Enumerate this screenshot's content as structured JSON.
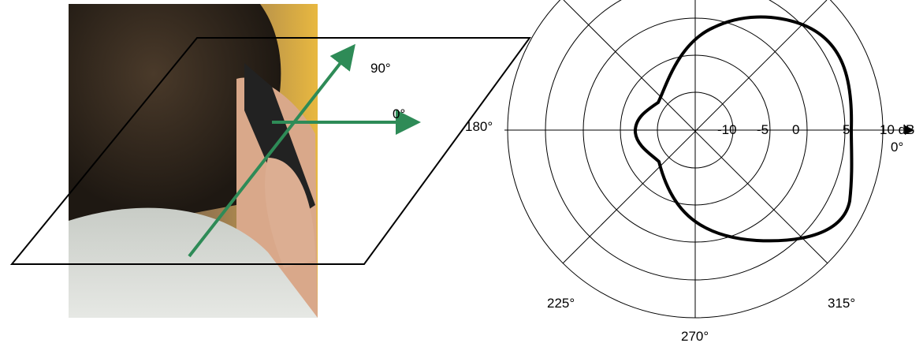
{
  "photo_labels": {
    "angle_90": "90°",
    "angle_0": "0°"
  },
  "polar": {
    "ring_labels": [
      "-10",
      "-5",
      "0",
      "5",
      "10 dB"
    ],
    "angle_labels": {
      "a180": "180°",
      "a0": "0°",
      "a225": "225°",
      "a315": "315°",
      "a270": "270°"
    }
  }
}
